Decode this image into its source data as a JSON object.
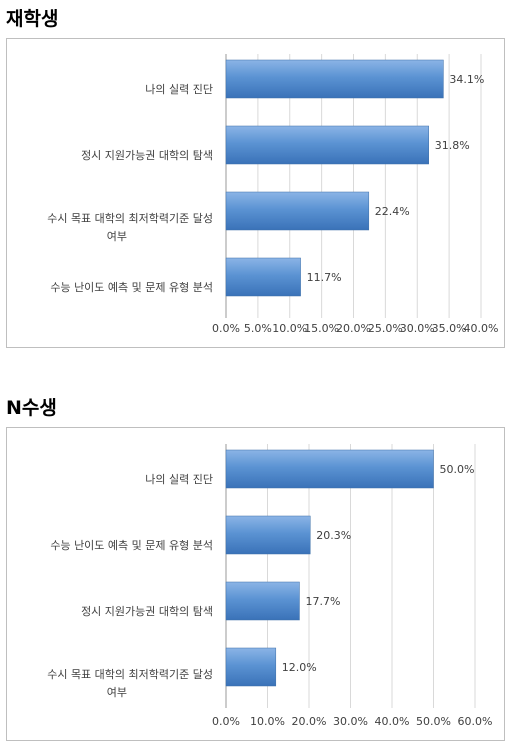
{
  "sections": [
    {
      "title": "재학생",
      "chart_data": {
        "type": "bar",
        "orientation": "horizontal",
        "categories": [
          "나의 실력 진단",
          "정시 지원가능권 대학의 탐색",
          "수시 목표 대학의 최저학력기준 달성 여부",
          "수능 난이도 예측 및 문제 유형 분석"
        ],
        "category_lines": [
          [
            "나의 실력 진단"
          ],
          [
            "정시 지원가능권 대학의 탐색"
          ],
          [
            "수시 목표 대학의 최저학력기준 달성",
            "여부"
          ],
          [
            "수능 난이도 예측 및 문제 유형 분석"
          ]
        ],
        "values": [
          34.1,
          31.8,
          22.4,
          11.7
        ],
        "value_labels": [
          "34.1%",
          "31.8%",
          "22.4%",
          "11.7%"
        ],
        "xlim": [
          0,
          40
        ],
        "ticks": [
          0,
          5,
          10,
          15,
          20,
          25,
          30,
          35,
          40
        ],
        "tick_labels": [
          "0.0%",
          "5.0%",
          "10.0%",
          "15.0%",
          "20.0%",
          "25.0%",
          "30.0%",
          "35.0%",
          "40.0%"
        ],
        "grid": true,
        "bar_color": "#4f86c6"
      }
    },
    {
      "title": "N수생",
      "chart_data": {
        "type": "bar",
        "orientation": "horizontal",
        "categories": [
          "나의 실력 진단",
          "수능 난이도 예측 및 문제 유형 분석",
          "정시 지원가능권 대학의 탐색",
          "수시 목표 대학의 최저학력기준 달성 여부"
        ],
        "category_lines": [
          [
            "나의 실력 진단"
          ],
          [
            "수능 난이도 예측 및 문제 유형 분석"
          ],
          [
            "정시 지원가능권 대학의 탐색"
          ],
          [
            "수시 목표 대학의 최저학력기준 달성",
            "여부"
          ]
        ],
        "values": [
          50.0,
          20.3,
          17.7,
          12.0
        ],
        "value_labels": [
          "50.0%",
          "20.3%",
          "17.7%",
          "12.0%"
        ],
        "xlim": [
          0,
          60
        ],
        "ticks": [
          0,
          10,
          20,
          30,
          40,
          50,
          60
        ],
        "tick_labels": [
          "0.0%",
          "10.0%",
          "20.0%",
          "30.0%",
          "40.0%",
          "50.0%",
          "60.0%"
        ],
        "grid": true,
        "bar_color": "#4f86c6"
      }
    }
  ]
}
